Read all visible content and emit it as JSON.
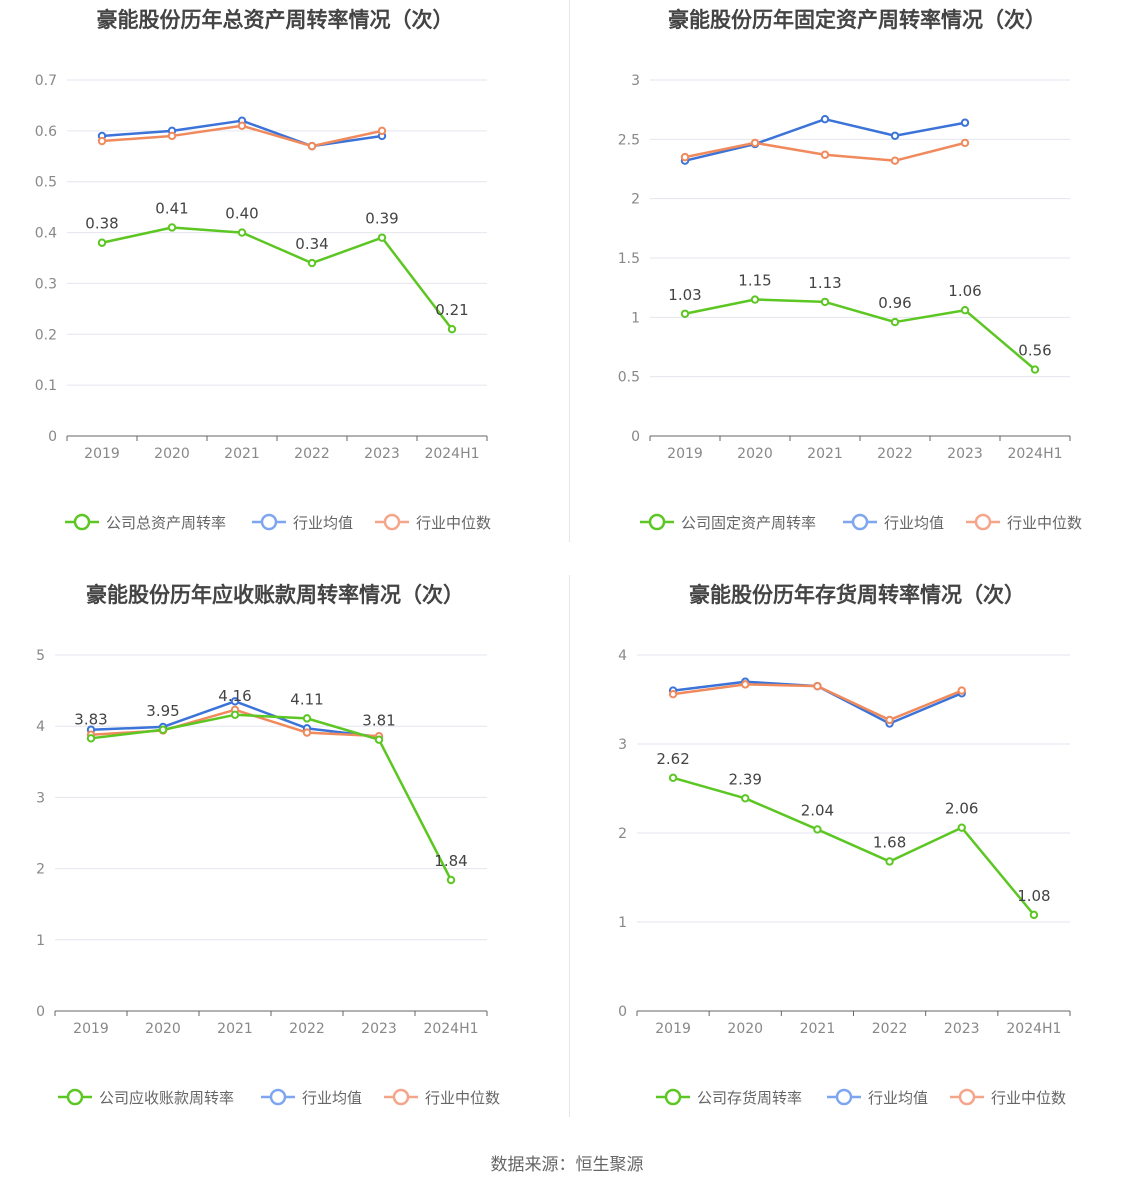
{
  "footer": {
    "source": "数据来源：恒生聚源"
  },
  "colors": {
    "company": "#5cc623",
    "average": "#3b73d9",
    "median": "#f08a5d"
  },
  "chart_data": [
    {
      "type": "line",
      "title": "豪能股份历年总资产周转率情况（次）",
      "categories": [
        "2019",
        "2020",
        "2021",
        "2022",
        "2023",
        "2024H1"
      ],
      "ylim": [
        0,
        0.7
      ],
      "yticks": [
        "0",
        "0.1",
        "0.2",
        "0.3",
        "0.4",
        "0.5",
        "0.6",
        "0.7"
      ],
      "series": [
        {
          "name": "公司总资产周转率",
          "values": [
            0.38,
            0.41,
            0.4,
            0.34,
            0.39,
            0.21
          ],
          "labels": [
            "0.38",
            "0.41",
            "0.40",
            "0.34",
            "0.39",
            "0.21"
          ]
        },
        {
          "name": "行业均值",
          "values": [
            0.59,
            0.6,
            0.62,
            0.57,
            0.59,
            null
          ]
        },
        {
          "name": "行业中位数",
          "values": [
            0.58,
            0.59,
            0.61,
            0.57,
            0.6,
            null
          ]
        }
      ]
    },
    {
      "type": "line",
      "title": "豪能股份历年固定资产周转率情况（次）",
      "categories": [
        "2019",
        "2020",
        "2021",
        "2022",
        "2023",
        "2024H1"
      ],
      "ylim": [
        0,
        3
      ],
      "yticks": [
        "0",
        "0.5",
        "1",
        "1.5",
        "2",
        "2.5",
        "3"
      ],
      "series": [
        {
          "name": "公司固定资产周转率",
          "values": [
            1.03,
            1.15,
            1.13,
            0.96,
            1.06,
            0.56
          ],
          "labels": [
            "1.03",
            "1.15",
            "1.13",
            "0.96",
            "1.06",
            "0.56"
          ]
        },
        {
          "name": "行业均值",
          "values": [
            2.32,
            2.46,
            2.67,
            2.53,
            2.64,
            null
          ]
        },
        {
          "name": "行业中位数",
          "values": [
            2.35,
            2.47,
            2.37,
            2.32,
            2.47,
            null
          ]
        }
      ]
    },
    {
      "type": "line",
      "title": "豪能股份历年应收账款周转率情况（次）",
      "categories": [
        "2019",
        "2020",
        "2021",
        "2022",
        "2023",
        "2024H1"
      ],
      "ylim": [
        0,
        5
      ],
      "yticks": [
        "0",
        "1",
        "2",
        "3",
        "4",
        "5"
      ],
      "series": [
        {
          "name": "公司应收账款周转率",
          "values": [
            3.83,
            3.95,
            4.16,
            4.11,
            3.81,
            1.84
          ],
          "labels": [
            "3.83",
            "3.95",
            "4.16",
            "4.11",
            "3.81",
            "1.84"
          ]
        },
        {
          "name": "行业均值",
          "values": [
            3.95,
            3.99,
            4.35,
            3.97,
            3.85,
            null
          ]
        },
        {
          "name": "行业中位数",
          "values": [
            3.88,
            3.94,
            4.23,
            3.91,
            3.86,
            null
          ]
        }
      ]
    },
    {
      "type": "line",
      "title": "豪能股份历年存货周转率情况（次）",
      "categories": [
        "2019",
        "2020",
        "2021",
        "2022",
        "2023",
        "2024H1"
      ],
      "ylim": [
        0,
        4
      ],
      "yticks": [
        "0",
        "1",
        "2",
        "3",
        "4"
      ],
      "series": [
        {
          "name": "公司存货周转率",
          "values": [
            2.62,
            2.39,
            2.04,
            1.68,
            2.06,
            1.08
          ],
          "labels": [
            "2.62",
            "2.39",
            "2.04",
            "1.68",
            "2.06",
            "1.08"
          ]
        },
        {
          "name": "行业均值",
          "values": [
            3.6,
            3.7,
            3.65,
            3.23,
            3.57,
            null
          ]
        },
        {
          "name": "行业中位数",
          "values": [
            3.56,
            3.67,
            3.65,
            3.27,
            3.6,
            null
          ]
        }
      ]
    }
  ]
}
